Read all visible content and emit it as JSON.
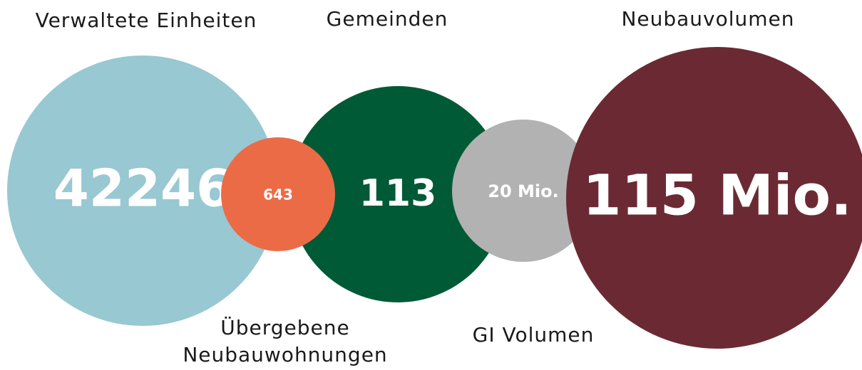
{
  "items": [
    {
      "label": [
        "Verwaltete Einheiten"
      ],
      "value": "42246",
      "color": "#98c8d2"
    },
    {
      "label": [
        "Übergebene",
        "Neubauwohnungen"
      ],
      "value": "643",
      "color": "#ec6b47"
    },
    {
      "label": [
        "Gemeinden"
      ],
      "value": "113",
      "color": "#005a36"
    },
    {
      "label": [
        "GI Volumen"
      ],
      "value": "20 Mio.",
      "color": "#b2b2b2"
    },
    {
      "label": [
        "Neubauvolumen"
      ],
      "value": "115 Mio.",
      "color": "#6b2a33"
    }
  ]
}
